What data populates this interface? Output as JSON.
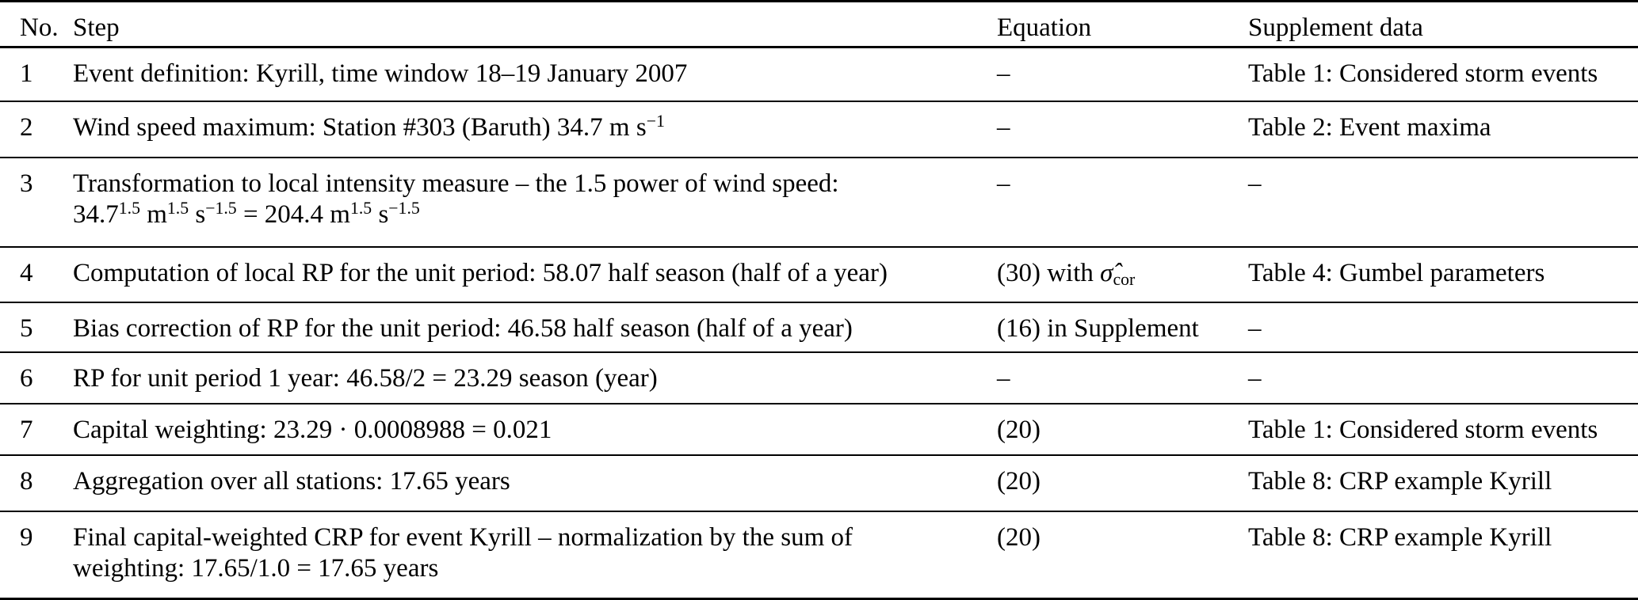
{
  "colors": {
    "text_color": "#000000",
    "background_color": "#ffffff",
    "rule_color": "#000000"
  },
  "table": {
    "columns": [
      {
        "key": "no",
        "label": "No."
      },
      {
        "key": "step",
        "label": "Step"
      },
      {
        "key": "equation",
        "label": "Equation"
      },
      {
        "key": "supplement",
        "label": "Supplement data"
      }
    ],
    "rows": [
      {
        "no": "1",
        "step": [
          {
            "t": "Event definition: Kyrill, time window 18–19 January 2007"
          }
        ],
        "equation": [
          {
            "t": "–"
          }
        ],
        "supplement": [
          {
            "t": "Table 1: Considered storm events"
          }
        ]
      },
      {
        "no": "2",
        "step": [
          {
            "t": "Wind speed maximum: Station #303 (Baruth) 34.7 m s"
          },
          {
            "sup": "−1"
          }
        ],
        "equation": [
          {
            "t": "–"
          }
        ],
        "supplement": [
          {
            "t": "Table 2: Event maxima"
          }
        ]
      },
      {
        "no": "3",
        "step": [
          {
            "t": "Transformation to local intensity measure – the 1.5 power of wind speed:"
          },
          {
            "br": true
          },
          {
            "t": "34.7"
          },
          {
            "sup": "1.5"
          },
          {
            "t": " m"
          },
          {
            "sup": "1.5"
          },
          {
            "t": " s"
          },
          {
            "sup": "−1.5"
          },
          {
            "t": " = 204.4 m"
          },
          {
            "sup": "1.5"
          },
          {
            "t": " s"
          },
          {
            "sup": "−1.5"
          }
        ],
        "equation": [
          {
            "t": "–"
          }
        ],
        "supplement": [
          {
            "t": "–"
          }
        ]
      },
      {
        "no": "4",
        "step": [
          {
            "t": "Computation of local RP for the unit period: 58.07 half season (half of a year)"
          }
        ],
        "equation": [
          {
            "t": "(30) with "
          },
          {
            "t": "σ̂",
            "i": true
          },
          {
            "sub": "cor"
          }
        ],
        "supplement": [
          {
            "t": "Table 4: Gumbel parameters"
          }
        ]
      },
      {
        "no": "5",
        "step": [
          {
            "t": "Bias correction of RP for the unit period: 46.58 half season (half of a year)"
          }
        ],
        "equation": [
          {
            "t": "(16) in Supplement"
          }
        ],
        "supplement": [
          {
            "t": "–"
          }
        ]
      },
      {
        "no": "6",
        "step": [
          {
            "t": "RP for unit period 1 year: 46.58/2 = 23.29 season (year)"
          }
        ],
        "equation": [
          {
            "t": "–"
          }
        ],
        "supplement": [
          {
            "t": "–"
          }
        ]
      },
      {
        "no": "7",
        "step": [
          {
            "t": "Capital weighting: 23.29 · 0.0008988 = 0.021"
          }
        ],
        "equation": [
          {
            "t": "(20)"
          }
        ],
        "supplement": [
          {
            "t": "Table 1: Considered storm events"
          }
        ]
      },
      {
        "no": "8",
        "step": [
          {
            "t": "Aggregation over all stations: 17.65 years"
          }
        ],
        "equation": [
          {
            "t": "(20)"
          }
        ],
        "supplement": [
          {
            "t": "Table 8: CRP example Kyrill"
          }
        ]
      },
      {
        "no": "9",
        "step": [
          {
            "t": "Final capital-weighted CRP for event Kyrill – normalization by the sum of"
          },
          {
            "br": true
          },
          {
            "t": "weighting: 17.65/1.0 = 17.65 years"
          }
        ],
        "equation": [
          {
            "t": "(20)"
          }
        ],
        "supplement": [
          {
            "t": "Table 8: CRP example Kyrill"
          }
        ]
      }
    ]
  }
}
